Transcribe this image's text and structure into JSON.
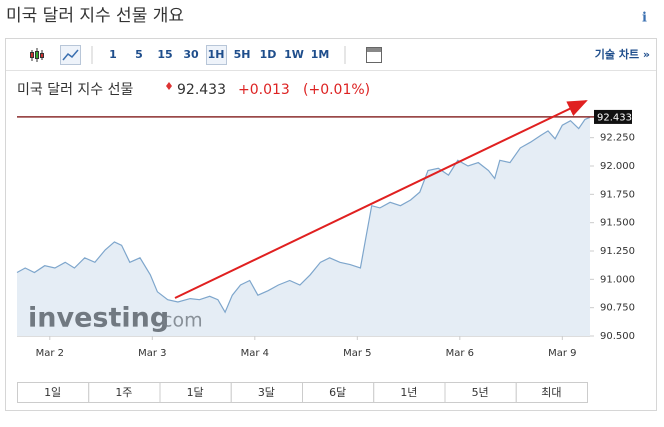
{
  "header": {
    "title": "미국 달러 지수 선물 개요",
    "info": "i"
  },
  "toolbar": {
    "intervals": [
      "1",
      "5",
      "15",
      "30",
      "1H",
      "5H",
      "1D",
      "1W",
      "1M"
    ],
    "tech_chart": "기술 차트 »"
  },
  "quote": {
    "name": "미국 달러 지수 선물",
    "price": 92.433,
    "change": "+0.013",
    "change_pct": "(+0.01%)"
  },
  "chart_data": {
    "type": "line",
    "x": [
      -0.32,
      -0.24,
      -0.15,
      -0.05,
      0.05,
      0.15,
      0.24,
      0.34,
      0.44,
      0.54,
      0.63,
      0.7,
      0.78,
      0.88,
      0.98,
      1.05,
      1.15,
      1.25,
      1.37,
      1.46,
      1.56,
      1.64,
      1.71,
      1.78,
      1.86,
      1.95,
      2.03,
      2.13,
      2.23,
      2.34,
      2.44,
      2.54,
      2.64,
      2.73,
      2.83,
      2.93,
      3.03,
      3.08,
      3.14,
      3.22,
      3.32,
      3.42,
      3.52,
      3.61,
      3.69,
      3.79,
      3.89,
      3.98,
      4.08,
      4.18,
      4.28,
      4.34,
      4.39,
      4.49,
      4.59,
      4.69,
      4.79,
      4.86,
      4.93,
      5.0,
      5.08,
      5.16,
      5.22,
      5.27
    ],
    "series": [
      {
        "name": "미국 달러 지수 선물",
        "color": "#7ea6cc",
        "values": [
          91.06,
          91.1,
          91.06,
          91.12,
          91.1,
          91.15,
          91.1,
          91.19,
          91.15,
          91.26,
          91.33,
          91.3,
          91.15,
          91.19,
          91.04,
          90.89,
          90.82,
          90.8,
          90.83,
          90.82,
          90.85,
          90.82,
          90.71,
          90.86,
          90.95,
          90.99,
          90.86,
          90.9,
          90.95,
          90.99,
          90.95,
          91.04,
          91.15,
          91.19,
          91.15,
          91.13,
          91.1,
          91.35,
          91.65,
          91.63,
          91.68,
          91.65,
          91.7,
          91.77,
          91.96,
          91.98,
          91.92,
          92.05,
          92.0,
          92.03,
          91.96,
          91.89,
          92.05,
          92.03,
          92.16,
          92.21,
          92.27,
          92.31,
          92.24,
          92.36,
          92.4,
          92.33,
          92.41,
          92.43
        ]
      }
    ],
    "last_value": 92.433,
    "last_color": "#8b2e2e",
    "xlim": [
      -0.32,
      5.27
    ],
    "xticks": [
      {
        "value": 0,
        "label": "Mar 2"
      },
      {
        "value": 1,
        "label": "Mar 3"
      },
      {
        "value": 2,
        "label": "Mar 4"
      },
      {
        "value": 3,
        "label": "Mar 5"
      },
      {
        "value": 4,
        "label": "Mar 6"
      },
      {
        "value": 5,
        "label": "Mar 9"
      }
    ],
    "ylim": [
      90.5,
      92.45
    ],
    "yticks": [
      {
        "value": 90.5,
        "label": "90.500"
      },
      {
        "value": 90.75,
        "label": "90.750"
      },
      {
        "value": 91,
        "label": "91.000"
      },
      {
        "value": 91.25,
        "label": "91.250"
      },
      {
        "value": 91.5,
        "label": "91.500"
      },
      {
        "value": 91.75,
        "label": "91.750"
      },
      {
        "value": 92,
        "label": "92.000"
      },
      {
        "value": 92.25,
        "label": "92.250"
      }
    ],
    "grid": false,
    "watermark": {
      "brand": "investing",
      "suffix": ".com"
    }
  },
  "ranges": [
    "1일",
    "1주",
    "1달",
    "3달",
    "6달",
    "1년",
    "5년",
    "최대"
  ]
}
